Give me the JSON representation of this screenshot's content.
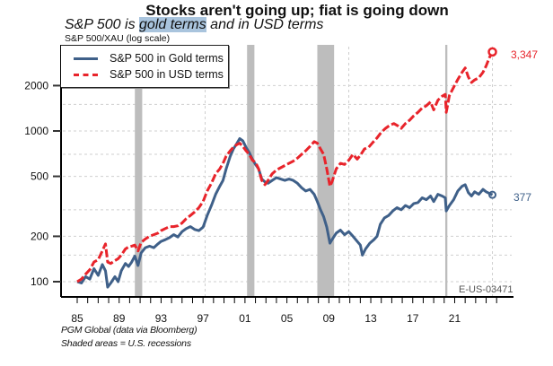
{
  "chart_data": {
    "type": "line",
    "title": "Stocks aren't going up; fiat is going down",
    "subtitle": {
      "prefix": "S&P 500 is ",
      "highlight": "gold terms",
      "suffix": " and in USD terms"
    },
    "ylabel": "S&P 500/XAU (log scale)",
    "xlabel": "",
    "yscale": "log",
    "ylim": [
      85,
      3900
    ],
    "xlim": [
      1983.6,
      2026.5
    ],
    "grid": true,
    "legend_position": "top-left",
    "y_ticks": [
      {
        "value": 100,
        "label": "100"
      },
      {
        "value": 200,
        "label": "200"
      },
      {
        "value": 500,
        "label": "500"
      },
      {
        "value": 1000,
        "label": "1000"
      },
      {
        "value": 2000,
        "label": "2000"
      }
    ],
    "x_ticks": [
      {
        "value": 1985,
        "label": "85"
      },
      {
        "value": 1989,
        "label": "89"
      },
      {
        "value": 1993,
        "label": "93"
      },
      {
        "value": 1997,
        "label": "97"
      },
      {
        "value": 2001,
        "label": "01"
      },
      {
        "value": 2005,
        "label": "05"
      },
      {
        "value": 2009,
        "label": "09"
      },
      {
        "value": 2013,
        "label": "13"
      },
      {
        "value": 2017,
        "label": "17"
      },
      {
        "value": 2021,
        "label": "21"
      }
    ],
    "recessions": [
      {
        "start": 1990.5,
        "end": 1991.2
      },
      {
        "start": 2001.2,
        "end": 2001.9
      },
      {
        "start": 2007.9,
        "end": 2009.5
      },
      {
        "start": 2020.1,
        "end": 2020.3
      }
    ],
    "series": [
      {
        "name": "S&P 500 in Gold terms",
        "color": "#3f6089",
        "style": "solid",
        "end_value_label": "377",
        "points": [
          [
            1985.0,
            100
          ],
          [
            1985.4,
            98
          ],
          [
            1985.8,
            108
          ],
          [
            1986.2,
            104
          ],
          [
            1986.6,
            122
          ],
          [
            1987.0,
            110
          ],
          [
            1987.4,
            130
          ],
          [
            1987.7,
            118
          ],
          [
            1987.9,
            92
          ],
          [
            1988.2,
            98
          ],
          [
            1988.6,
            108
          ],
          [
            1988.9,
            100
          ],
          [
            1989.2,
            118
          ],
          [
            1989.6,
            132
          ],
          [
            1989.9,
            126
          ],
          [
            1990.2,
            135
          ],
          [
            1990.5,
            148
          ],
          [
            1990.8,
            128
          ],
          [
            1991.1,
            155
          ],
          [
            1991.5,
            168
          ],
          [
            1991.9,
            172
          ],
          [
            1992.3,
            168
          ],
          [
            1992.7,
            178
          ],
          [
            1993.0,
            185
          ],
          [
            1993.4,
            190
          ],
          [
            1993.8,
            196
          ],
          [
            1994.2,
            205
          ],
          [
            1994.6,
            198
          ],
          [
            1995.0,
            215
          ],
          [
            1995.4,
            225
          ],
          [
            1995.8,
            232
          ],
          [
            1996.2,
            222
          ],
          [
            1996.6,
            218
          ],
          [
            1997.0,
            230
          ],
          [
            1997.4,
            275
          ],
          [
            1997.8,
            320
          ],
          [
            1998.2,
            380
          ],
          [
            1998.6,
            430
          ],
          [
            1998.9,
            470
          ],
          [
            1999.2,
            560
          ],
          [
            1999.6,
            680
          ],
          [
            1999.9,
            760
          ],
          [
            2000.2,
            820
          ],
          [
            2000.5,
            890
          ],
          [
            2000.8,
            860
          ],
          [
            2001.1,
            780
          ],
          [
            2001.4,
            720
          ],
          [
            2001.7,
            650
          ],
          [
            2002.0,
            600
          ],
          [
            2002.3,
            560
          ],
          [
            2002.6,
            480
          ],
          [
            2002.9,
            460
          ],
          [
            2003.2,
            450
          ],
          [
            2003.6,
            470
          ],
          [
            2004.0,
            490
          ],
          [
            2004.4,
            480
          ],
          [
            2004.8,
            470
          ],
          [
            2005.2,
            480
          ],
          [
            2005.6,
            470
          ],
          [
            2006.0,
            450
          ],
          [
            2006.4,
            420
          ],
          [
            2006.8,
            400
          ],
          [
            2007.2,
            410
          ],
          [
            2007.6,
            380
          ],
          [
            2007.9,
            340
          ],
          [
            2008.2,
            300
          ],
          [
            2008.5,
            270
          ],
          [
            2008.8,
            230
          ],
          [
            2009.1,
            180
          ],
          [
            2009.3,
            190
          ],
          [
            2009.7,
            210
          ],
          [
            2010.1,
            220
          ],
          [
            2010.5,
            205
          ],
          [
            2010.9,
            215
          ],
          [
            2011.3,
            200
          ],
          [
            2011.7,
            185
          ],
          [
            2012.0,
            175
          ],
          [
            2012.2,
            150
          ],
          [
            2012.5,
            165
          ],
          [
            2012.9,
            180
          ],
          [
            2013.3,
            190
          ],
          [
            2013.6,
            200
          ],
          [
            2013.9,
            240
          ],
          [
            2014.3,
            265
          ],
          [
            2014.7,
            275
          ],
          [
            2015.1,
            295
          ],
          [
            2015.5,
            310
          ],
          [
            2015.9,
            300
          ],
          [
            2016.3,
            320
          ],
          [
            2016.7,
            310
          ],
          [
            2017.1,
            330
          ],
          [
            2017.5,
            335
          ],
          [
            2017.9,
            360
          ],
          [
            2018.3,
            350
          ],
          [
            2018.7,
            370
          ],
          [
            2019.0,
            340
          ],
          [
            2019.4,
            380
          ],
          [
            2019.8,
            370
          ],
          [
            2020.1,
            360
          ],
          [
            2020.2,
            295
          ],
          [
            2020.5,
            320
          ],
          [
            2020.9,
            350
          ],
          [
            2021.3,
            400
          ],
          [
            2021.7,
            430
          ],
          [
            2022.0,
            440
          ],
          [
            2022.3,
            390
          ],
          [
            2022.6,
            370
          ],
          [
            2022.9,
            395
          ],
          [
            2023.3,
            380
          ],
          [
            2023.7,
            410
          ],
          [
            2024.0,
            395
          ],
          [
            2024.3,
            385
          ],
          [
            2024.6,
            377
          ]
        ]
      },
      {
        "name": "S&P 500 in USD terms",
        "color": "#e8242b",
        "style": "dashed",
        "end_value_label": "3,347",
        "points": [
          [
            1985.0,
            100
          ],
          [
            1985.4,
            104
          ],
          [
            1985.8,
            112
          ],
          [
            1986.2,
            120
          ],
          [
            1986.6,
            135
          ],
          [
            1987.0,
            140
          ],
          [
            1987.4,
            160
          ],
          [
            1987.7,
            178
          ],
          [
            1987.9,
            135
          ],
          [
            1988.2,
            132
          ],
          [
            1988.6,
            138
          ],
          [
            1988.9,
            142
          ],
          [
            1989.2,
            150
          ],
          [
            1989.6,
            165
          ],
          [
            1989.9,
            170
          ],
          [
            1990.2,
            172
          ],
          [
            1990.5,
            175
          ],
          [
            1990.8,
            160
          ],
          [
            1991.1,
            182
          ],
          [
            1991.5,
            192
          ],
          [
            1991.9,
            200
          ],
          [
            1992.3,
            205
          ],
          [
            1992.7,
            210
          ],
          [
            1993.0,
            218
          ],
          [
            1993.4,
            225
          ],
          [
            1993.8,
            232
          ],
          [
            1994.2,
            232
          ],
          [
            1994.6,
            235
          ],
          [
            1995.0,
            245
          ],
          [
            1995.4,
            262
          ],
          [
            1995.8,
            275
          ],
          [
            1996.2,
            290
          ],
          [
            1996.6,
            310
          ],
          [
            1997.0,
            340
          ],
          [
            1997.4,
            400
          ],
          [
            1997.8,
            450
          ],
          [
            1998.2,
            520
          ],
          [
            1998.6,
            560
          ],
          [
            1998.9,
            610
          ],
          [
            1999.2,
            680
          ],
          [
            1999.6,
            740
          ],
          [
            1999.9,
            780
          ],
          [
            2000.2,
            810
          ],
          [
            2000.5,
            830
          ],
          [
            2000.8,
            790
          ],
          [
            2001.1,
            740
          ],
          [
            2001.4,
            700
          ],
          [
            2001.7,
            640
          ],
          [
            2002.0,
            620
          ],
          [
            2002.3,
            560
          ],
          [
            2002.6,
            470
          ],
          [
            2002.9,
            440
          ],
          [
            2003.2,
            470
          ],
          [
            2003.6,
            520
          ],
          [
            2004.0,
            550
          ],
          [
            2004.4,
            570
          ],
          [
            2004.8,
            590
          ],
          [
            2005.2,
            610
          ],
          [
            2005.6,
            630
          ],
          [
            2006.0,
            660
          ],
          [
            2006.4,
            700
          ],
          [
            2006.8,
            740
          ],
          [
            2007.2,
            790
          ],
          [
            2007.6,
            850
          ],
          [
            2007.9,
            830
          ],
          [
            2008.2,
            760
          ],
          [
            2008.5,
            700
          ],
          [
            2008.8,
            560
          ],
          [
            2009.1,
            430
          ],
          [
            2009.3,
            460
          ],
          [
            2009.7,
            560
          ],
          [
            2010.1,
            610
          ],
          [
            2010.5,
            600
          ],
          [
            2010.9,
            640
          ],
          [
            2011.3,
            700
          ],
          [
            2011.7,
            650
          ],
          [
            2012.0,
            690
          ],
          [
            2012.4,
            760
          ],
          [
            2012.8,
            780
          ],
          [
            2013.2,
            840
          ],
          [
            2013.6,
            900
          ],
          [
            2014.0,
            980
          ],
          [
            2014.4,
            1040
          ],
          [
            2014.8,
            1090
          ],
          [
            2015.2,
            1120
          ],
          [
            2015.6,
            1080
          ],
          [
            2015.9,
            1040
          ],
          [
            2016.3,
            1120
          ],
          [
            2016.7,
            1180
          ],
          [
            2017.1,
            1260
          ],
          [
            2017.5,
            1330
          ],
          [
            2017.9,
            1420
          ],
          [
            2018.3,
            1470
          ],
          [
            2018.7,
            1560
          ],
          [
            2019.0,
            1380
          ],
          [
            2019.4,
            1600
          ],
          [
            2019.8,
            1700
          ],
          [
            2020.1,
            1750
          ],
          [
            2020.2,
            1330
          ],
          [
            2020.5,
            1720
          ],
          [
            2020.9,
            1950
          ],
          [
            2021.3,
            2200
          ],
          [
            2021.7,
            2450
          ],
          [
            2022.0,
            2620
          ],
          [
            2022.3,
            2280
          ],
          [
            2022.6,
            2100
          ],
          [
            2022.9,
            2180
          ],
          [
            2023.3,
            2250
          ],
          [
            2023.7,
            2450
          ],
          [
            2024.0,
            2700
          ],
          [
            2024.3,
            3050
          ],
          [
            2024.6,
            3347
          ]
        ]
      }
    ],
    "footer": {
      "source": "PGM Global (data via Bloomberg)",
      "note": "Shaded areas = U.S. recessions",
      "chart_id": "E-US-03471"
    }
  }
}
